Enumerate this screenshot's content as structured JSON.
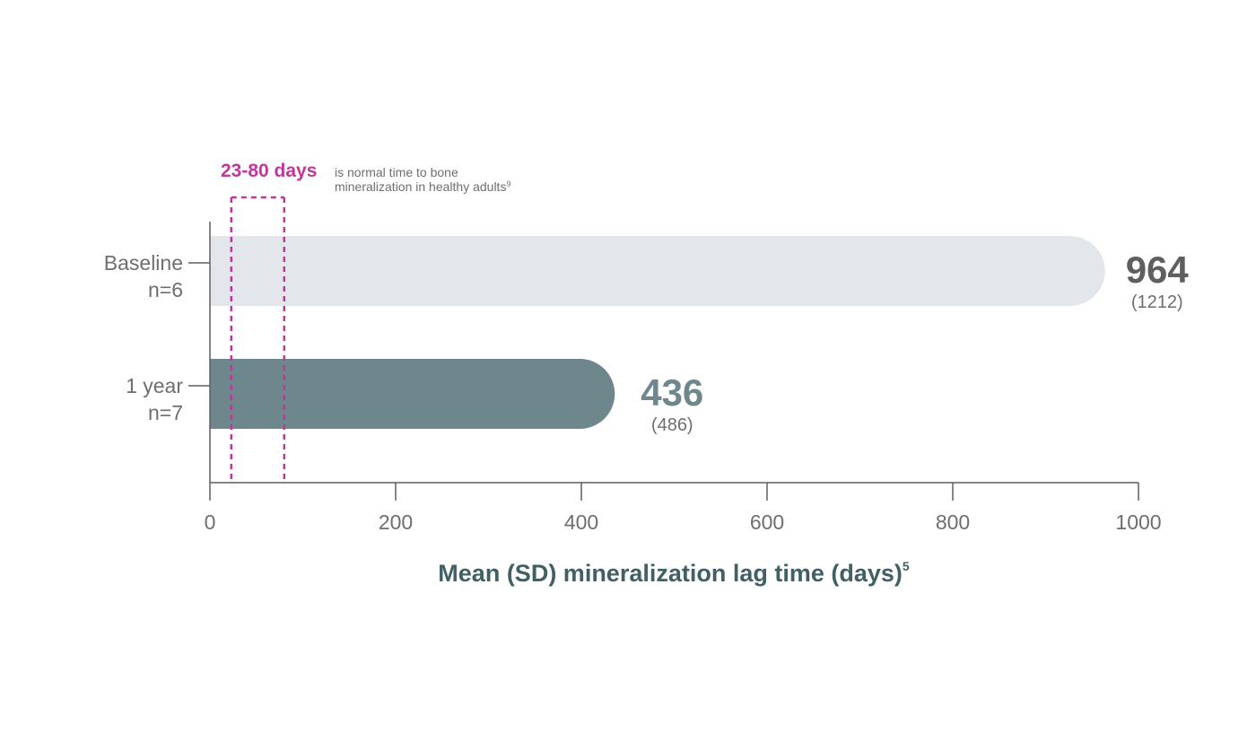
{
  "chart_data": {
    "type": "bar",
    "orientation": "horizontal",
    "xlabel": "Mean (SD) mineralization lag time (days)",
    "xlabel_superscript": "5",
    "xlim": [
      0,
      1000
    ],
    "xticks": [
      0,
      200,
      400,
      600,
      800,
      1000
    ],
    "grid": false,
    "categories": [
      {
        "label": "Baseline",
        "sublabel": "n=6",
        "value": 964,
        "value_label": "964",
        "sd": 1212,
        "sd_label": "(1212)",
        "color": "#e3e6ea",
        "value_color": "#5f5f5f"
      },
      {
        "label": "1 year",
        "sublabel": "n=7",
        "value": 436,
        "value_label": "436",
        "sd": 486,
        "sd_label": "(486)",
        "color": "#6e878d",
        "value_color": "#6e878d"
      }
    ],
    "annotation": {
      "range": [
        23,
        80
      ],
      "headline": "23-80 days",
      "line1": "is normal time to bone",
      "line2": "mineralization in healthy adults",
      "line2_superscript": "9",
      "color": "#c2369b"
    },
    "axis_color": "#5f5f5f"
  }
}
